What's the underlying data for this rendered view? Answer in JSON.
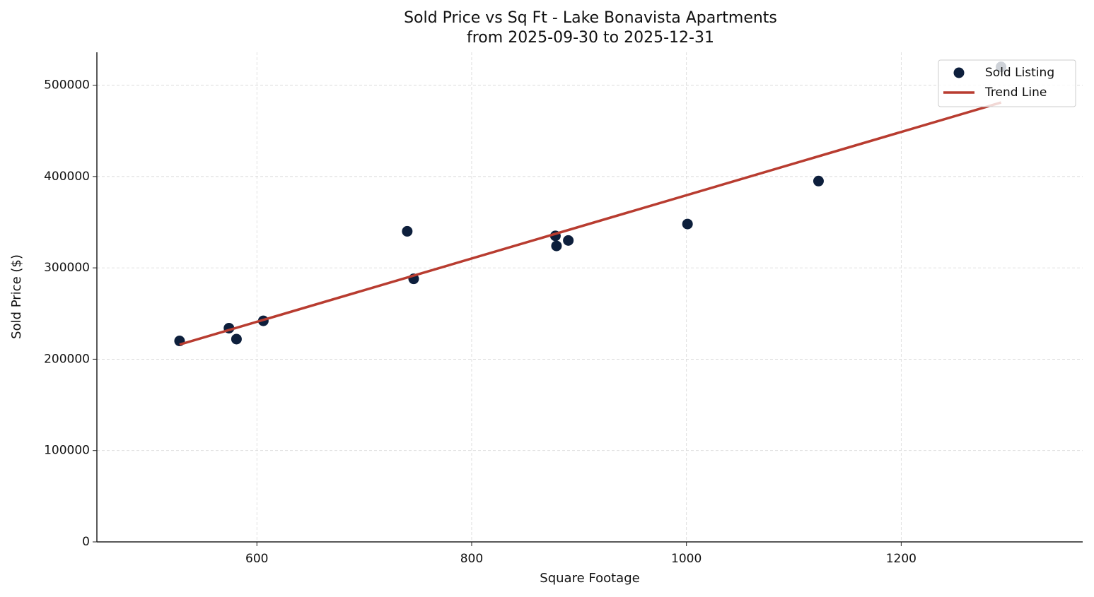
{
  "chart_data": {
    "type": "scatter",
    "title": "Sold Price vs Sq Ft - Lake Bonavista Apartments",
    "subtitle": "from 2025-09-30 to 2025-12-31",
    "x_label": "Square Footage",
    "y_label": "Sold Price ($)",
    "xlim": [
      451,
      1369
    ],
    "xticks": [
      600,
      800,
      1000,
      1200
    ],
    "ylim": [
      0,
      536000
    ],
    "yticks": [
      0,
      100000,
      200000,
      300000,
      400000,
      500000
    ],
    "grid": true,
    "legend": "upper right",
    "series": [
      {
        "name": "Sold Listing",
        "type": "scatter",
        "color": "#0d1f3c",
        "x": [
          528,
          574,
          581,
          606,
          740,
          746,
          878,
          879,
          890,
          1001,
          1123,
          1293
        ],
        "values": [
          220000,
          234000,
          222000,
          242000,
          340000,
          288000,
          335000,
          324000,
          330000,
          348000,
          395000,
          520000
        ]
      },
      {
        "name": "Trend Line",
        "type": "line",
        "color": "#b83c30",
        "x": [
          528,
          1293
        ],
        "values": [
          216000,
          481000
        ]
      }
    ]
  }
}
